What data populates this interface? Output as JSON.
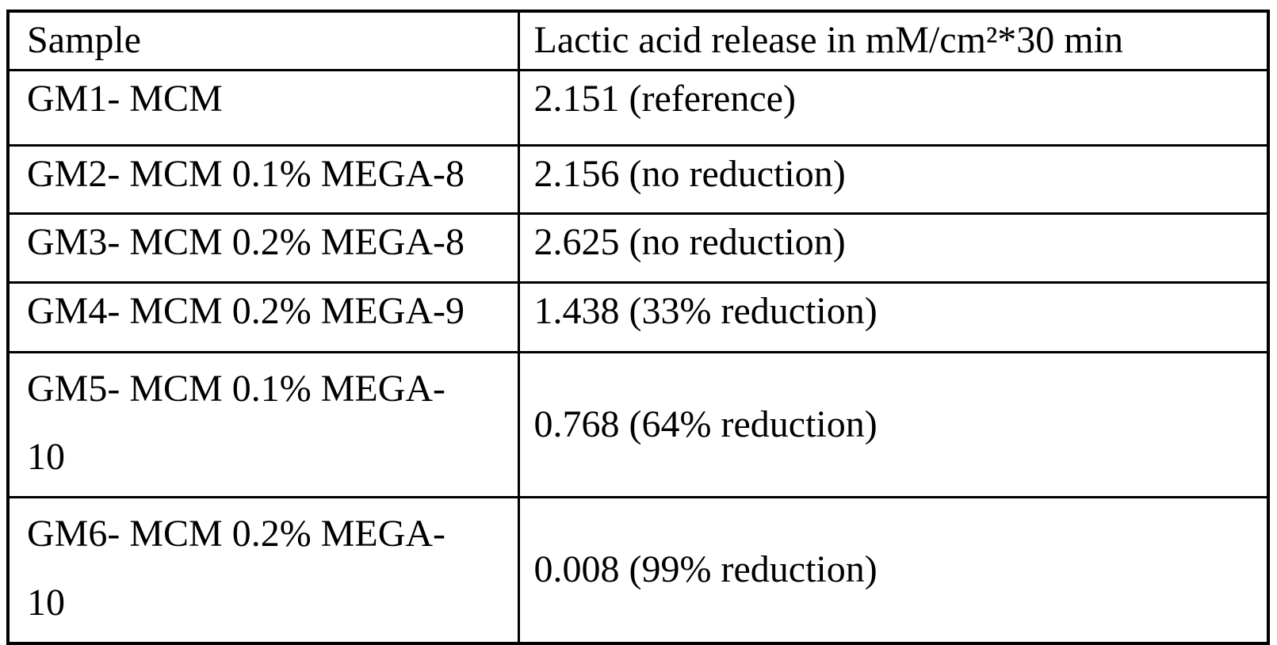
{
  "document": {
    "colors": {
      "background": "#ffffff",
      "border": "#000000",
      "text": "#000000"
    },
    "table": {
      "columns": [
        {
          "label": "Sample"
        },
        {
          "label": "Lactic acid release in mM/cm²*30 min"
        }
      ],
      "rows": [
        {
          "sample": "GM1- MCM",
          "value": "2.151 (reference)"
        },
        {
          "sample": "GM2- MCM 0.1% MEGA-8",
          "value": "2.156 (no reduction)"
        },
        {
          "sample": "GM3- MCM 0.2% MEGA-8",
          "value": "2.625 (no reduction)"
        },
        {
          "sample": "GM4- MCM 0.2% MEGA-9",
          "value": "1.438 (33% reduction)"
        },
        {
          "sample": "GM5- MCM 0.1% MEGA-10",
          "value": "0.768 (64% reduction)"
        },
        {
          "sample": "GM6- MCM 0.2% MEGA-10",
          "value": "0.008 (99% reduction)"
        }
      ]
    }
  }
}
